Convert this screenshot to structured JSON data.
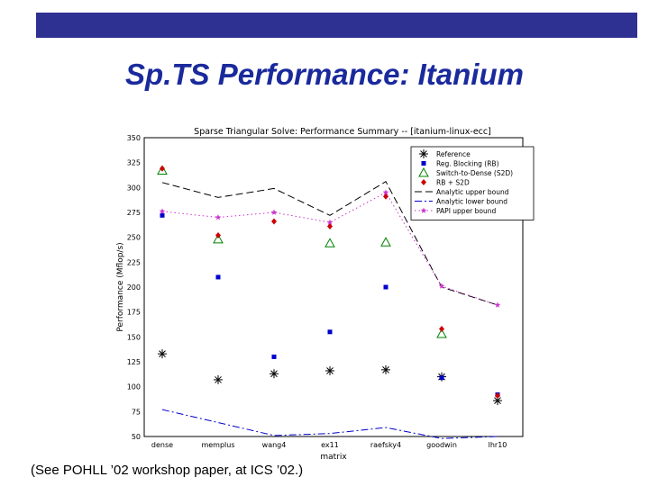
{
  "slide": {
    "title": "Sp.TS Performance: Itanium",
    "footnote": "(See POHLL ’02 workshop paper, at ICS ’02.)",
    "accent_color": "#2e3192",
    "title_color": "#1a2a9c"
  },
  "chart_data": {
    "type": "scatter",
    "title": "Sparse Triangular Solve: Performance Summary -- [itanium-linux-ecc]",
    "xlabel": "matrix",
    "ylabel": "Performance (Mflop/s)",
    "categories": [
      "dense",
      "memplus",
      "wang4",
      "ex11",
      "raefsky4",
      "goodwin",
      "lhr10"
    ],
    "ylim": [
      50,
      350
    ],
    "yticks": [
      50,
      75,
      100,
      125,
      150,
      175,
      200,
      225,
      250,
      275,
      300,
      325,
      350
    ],
    "grid": true,
    "legend_position": "top-right",
    "series": [
      {
        "name": "Reference",
        "marker": "asterisk",
        "color": "#000000",
        "values": [
          133,
          107,
          113,
          116,
          117,
          110,
          86
        ]
      },
      {
        "name": "Reg. Blocking (RB)",
        "marker": "square",
        "color": "#0000cc",
        "values": [
          272,
          210,
          130,
          155,
          200,
          109,
          92
        ]
      },
      {
        "name": "Switch-to-Dense (S2D)",
        "marker": "triangle",
        "color": "#008000",
        "values": [
          317,
          248,
          null,
          244,
          245,
          153,
          null
        ]
      },
      {
        "name": "RB + S2D",
        "marker": "diamond",
        "color": "#cc0000",
        "values": [
          319,
          252,
          266,
          261,
          291,
          158,
          91
        ]
      },
      {
        "name": "Analytic upper bound",
        "line": "dashed",
        "color": "#000000",
        "values": [
          305,
          290,
          299,
          272,
          306,
          200,
          182
        ]
      },
      {
        "name": "Analytic lower bound",
        "line": "dashdot",
        "color": "#0000cc",
        "values": [
          77,
          64,
          51,
          53,
          59,
          48,
          50
        ]
      },
      {
        "name": "PAPI upper bound",
        "line": "dotted",
        "marker": "star",
        "color": "#cc33cc",
        "values": [
          276,
          270,
          275,
          265,
          295,
          201,
          182
        ]
      }
    ]
  }
}
